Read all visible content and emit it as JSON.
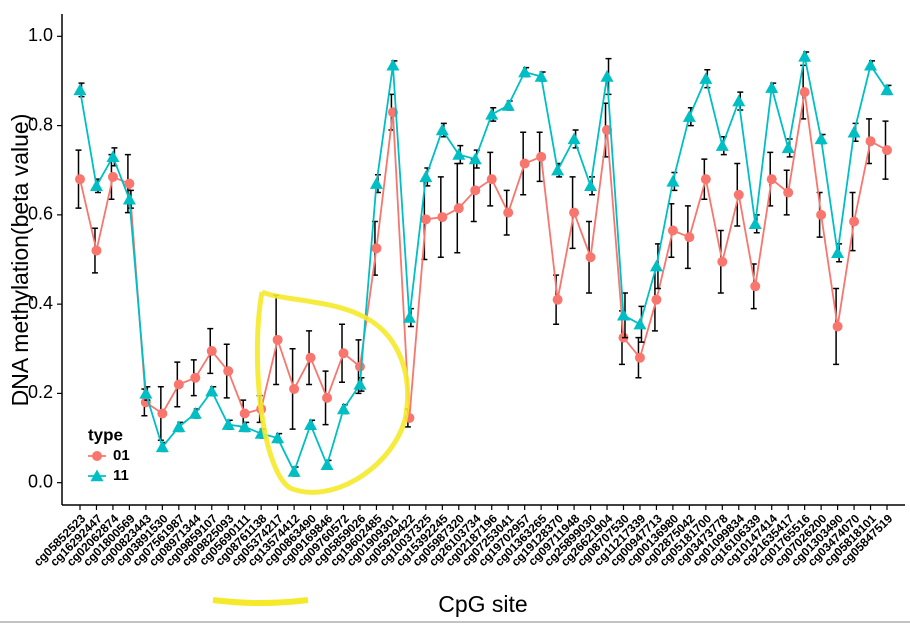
{
  "chart_data": {
    "type": "line",
    "x_label": "CpG site",
    "y_label": "DNA methylation(beta value)",
    "legend_title": "type",
    "legend_position": "bottom-left",
    "categories": [
      "cg05852523",
      "cg16292447",
      "cg02062874",
      "cg01800569",
      "cg00823443",
      "cg03891530",
      "cg07561987",
      "cg08971344",
      "cg09859107",
      "cg09825093",
      "cg05690111",
      "cg08761138",
      "cg05374217",
      "cg13574412",
      "cg00863490",
      "cg09169846",
      "cg09760572",
      "cg05859026",
      "cg19602485",
      "cg01909301",
      "cg05929422",
      "cg10037325",
      "cg15392245",
      "cg05987320",
      "cg26103734",
      "cg02187196",
      "cg07253041",
      "cg19702957",
      "cg01363265",
      "cg19128370",
      "cg09711948",
      "cg25899030",
      "cg26621904",
      "cg08707530",
      "cg11217339",
      "cg00947713",
      "cg00136980",
      "cg02875042",
      "cg05181700",
      "cg03473778",
      "cg01099834",
      "cg16106339",
      "cg10147414",
      "cg21635417",
      "cg01765516",
      "cg07026200",
      "cg01303490",
      "cg03474070",
      "cg05818101",
      "cg05847519"
    ],
    "series": [
      {
        "name": "01",
        "color": "#f8766d",
        "marker": "circle",
        "values": [
          0.68,
          0.52,
          0.685,
          0.67,
          0.18,
          0.155,
          0.22,
          0.235,
          0.295,
          0.25,
          0.155,
          0.165,
          0.32,
          0.21,
          0.28,
          0.19,
          0.29,
          0.26,
          0.525,
          0.83,
          0.145,
          0.59,
          0.595,
          0.615,
          0.655,
          0.68,
          0.605,
          0.715,
          0.73,
          0.41,
          0.605,
          0.505,
          0.79,
          0.325,
          0.28,
          0.41,
          0.565,
          0.55,
          0.68,
          0.495,
          0.645,
          0.44,
          0.68,
          0.65,
          0.875,
          0.6,
          0.35,
          0.585,
          0.765,
          0.745
        ],
        "errors": [
          0.065,
          0.05,
          0.05,
          0.065,
          0.03,
          0.06,
          0.05,
          0.04,
          0.05,
          0.06,
          0.03,
          0.03,
          0.1,
          0.09,
          0.06,
          0.06,
          0.065,
          0.06,
          0.06,
          0.04,
          0.02,
          0.09,
          0.09,
          0.1,
          0.07,
          0.06,
          0.05,
          0.07,
          0.055,
          0.055,
          0.08,
          0.08,
          0.06,
          0.06,
          0.045,
          0.07,
          0.06,
          0.07,
          0.045,
          0.07,
          0.07,
          0.05,
          0.06,
          0.05,
          0.06,
          0.05,
          0.085,
          0.065,
          0.05,
          0.065
        ]
      },
      {
        "name": "11",
        "color": "#00bfc4",
        "marker": "triangle",
        "values": [
          0.88,
          0.665,
          0.73,
          0.635,
          0.2,
          0.08,
          0.125,
          0.155,
          0.205,
          0.13,
          0.125,
          0.11,
          0.1,
          0.025,
          0.13,
          0.04,
          0.165,
          0.22,
          0.67,
          0.935,
          0.37,
          0.685,
          0.79,
          0.735,
          0.725,
          0.825,
          0.845,
          0.92,
          0.91,
          0.7,
          0.77,
          0.665,
          0.91,
          0.375,
          0.355,
          0.485,
          0.675,
          0.82,
          0.905,
          0.755,
          0.855,
          0.58,
          0.885,
          0.75,
          0.955,
          0.77,
          0.515,
          0.785,
          0.935,
          0.88
        ],
        "errors": [
          0.015,
          0.015,
          0.02,
          0.02,
          0.015,
          0.01,
          0.01,
          0.01,
          0.01,
          0.01,
          0.01,
          0.01,
          0.01,
          0.01,
          0.01,
          0.01,
          0.01,
          0.015,
          0.02,
          0.01,
          0.02,
          0.02,
          0.015,
          0.02,
          0.02,
          0.015,
          0.01,
          0.01,
          0.01,
          0.015,
          0.02,
          0.02,
          0.04,
          0.05,
          0.04,
          0.05,
          0.02,
          0.02,
          0.02,
          0.02,
          0.02,
          0.02,
          0.01,
          0.02,
          0.01,
          0.01,
          0.02,
          0.02,
          0.01,
          0.01
        ]
      }
    ],
    "ylim": [
      -0.05,
      1.05
    ],
    "yticks": [
      {
        "value": 0,
        "label": "0.0"
      },
      {
        "value": 0.2,
        "label": "0.2"
      },
      {
        "value": 0.4,
        "label": "0.4"
      },
      {
        "value": 0.6,
        "label": "0.6"
      },
      {
        "value": 0.8,
        "label": "0.8"
      },
      {
        "value": 1,
        "label": "1.0"
      }
    ]
  }
}
